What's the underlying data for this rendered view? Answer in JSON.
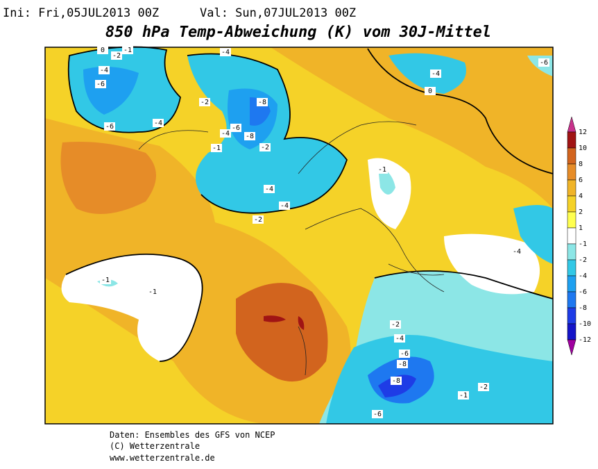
{
  "header": {
    "init": "Ini: Fri,05JUL2013 00Z",
    "valid": "Val: Sun,07JUL2013 00Z",
    "title": "850 hPa Temp-Abweichung (K) vom 30J-Mittel"
  },
  "legend": {
    "ticks": [
      12,
      10,
      8,
      6,
      4,
      2,
      1,
      -1,
      -2,
      -4,
      -6,
      -8,
      -10,
      -12
    ],
    "colors": [
      "#c8328c",
      "#a01414",
      "#d2641e",
      "#e68c28",
      "#f0b428",
      "#f5d228",
      "#ffff50",
      "#ffffff",
      "#8ce6e6",
      "#32c8e6",
      "#1ea0f0",
      "#1e78f0",
      "#1e3ce6",
      "#1414c8",
      "#a000a0"
    ]
  },
  "contour_labels": [
    "0",
    "-2",
    "-1",
    "-4",
    "-6",
    "-6",
    "-4",
    "-4",
    "-2",
    "-8",
    "-6",
    "-8",
    "-4",
    "-2",
    "-1",
    "-4",
    "-4",
    "-2",
    "-4",
    "-6",
    "-1",
    "-1",
    "-1",
    "-4",
    "-6",
    "-8",
    "-8",
    "-6",
    "-2",
    "-1",
    "-4",
    "-2",
    "0"
  ],
  "footer": [
    "Daten: Ensembles des GFS von NCEP",
    "(C) Wetterzentrale",
    "www.wetterzentrale.de"
  ]
}
